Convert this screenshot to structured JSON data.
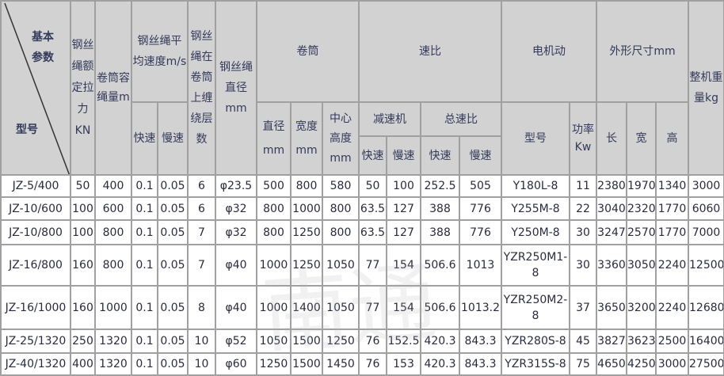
{
  "header": {
    "corner_top": "基本参数",
    "corner_bottom": "型号",
    "rope_tension": "钢丝绳额定拉力KN",
    "drum_capacity": "卷筒容绳量m",
    "rope_speed": "钢丝绳平均速度m/s",
    "rope_layers": "钢丝绳在卷筒上缠绕层数",
    "rope_diameter": "钢丝绳直径mm",
    "drum": "卷筒",
    "drum_diameter": "直径mm",
    "drum_width": "宽度mm",
    "drum_center_height": "中心高度mm",
    "ratio": "速比",
    "reducer": "减速机",
    "total_ratio": "总速比",
    "fast": "快速",
    "slow": "慢速",
    "motor": "电机动",
    "motor_model": "型号",
    "motor_power": "功率Kw",
    "dimensions": "外形尺寸mm",
    "length": "长",
    "width": "宽",
    "height": "高",
    "weight": "整机重量kg"
  },
  "rows": [
    [
      "JZ-5/400",
      "50",
      "400",
      "0.1",
      "0.05",
      "6",
      "φ23.5",
      "500",
      "800",
      "580",
      "50",
      "100",
      "252.5",
      "505",
      "Y180L-8",
      "11",
      "2380",
      "1970",
      "1340",
      "3000"
    ],
    [
      "JZ-10/600",
      "100",
      "600",
      "0.1",
      "0.05",
      "6",
      "φ32",
      "800",
      "1000",
      "800",
      "63.5",
      "127",
      "388",
      "776",
      "Y255M-8",
      "22",
      "3040",
      "2320",
      "1770",
      "6060"
    ],
    [
      "JZ-10/800",
      "100",
      "800",
      "0.1",
      "0.05",
      "7",
      "φ32",
      "800",
      "1250",
      "800",
      "63.5",
      "127",
      "388",
      "776",
      "Y250M-8",
      "30",
      "3247",
      "2570",
      "1770",
      "7000"
    ],
    [
      "JZ-16/800",
      "160",
      "800",
      "0.1",
      "0.05",
      "7",
      "φ40",
      "1000",
      "1250",
      "1050",
      "77",
      "154",
      "506.6",
      "1013",
      "YZR250M1-8",
      "30",
      "3360",
      "3050",
      "2240",
      "12500"
    ],
    [
      "JZ-16/1000",
      "160",
      "1000",
      "0.1",
      "0.05",
      "8",
      "φ40",
      "1000",
      "1400",
      "1050",
      "77",
      "154",
      "506.6",
      "1013.2",
      "YZR250M2-8",
      "37",
      "3650",
      "3200",
      "2240",
      "12680"
    ],
    [
      "JZ-25/1320",
      "250",
      "1320",
      "0.1",
      "0.05",
      "10",
      "φ52",
      "1050",
      "1500",
      "1250",
      "76",
      "152.5",
      "420.3",
      "843.3",
      "YZR280S-8",
      "45",
      "3827",
      "3623",
      "2500",
      "16400"
    ],
    [
      "JZ-40/1320",
      "400",
      "1320",
      "0.1",
      "0.05",
      "10",
      "φ60",
      "1250",
      "1500",
      "1450",
      "76",
      "153",
      "420.3",
      "843.3",
      "YZR315S-8",
      "75",
      "4650",
      "4250",
      "3000",
      "27500"
    ]
  ]
}
